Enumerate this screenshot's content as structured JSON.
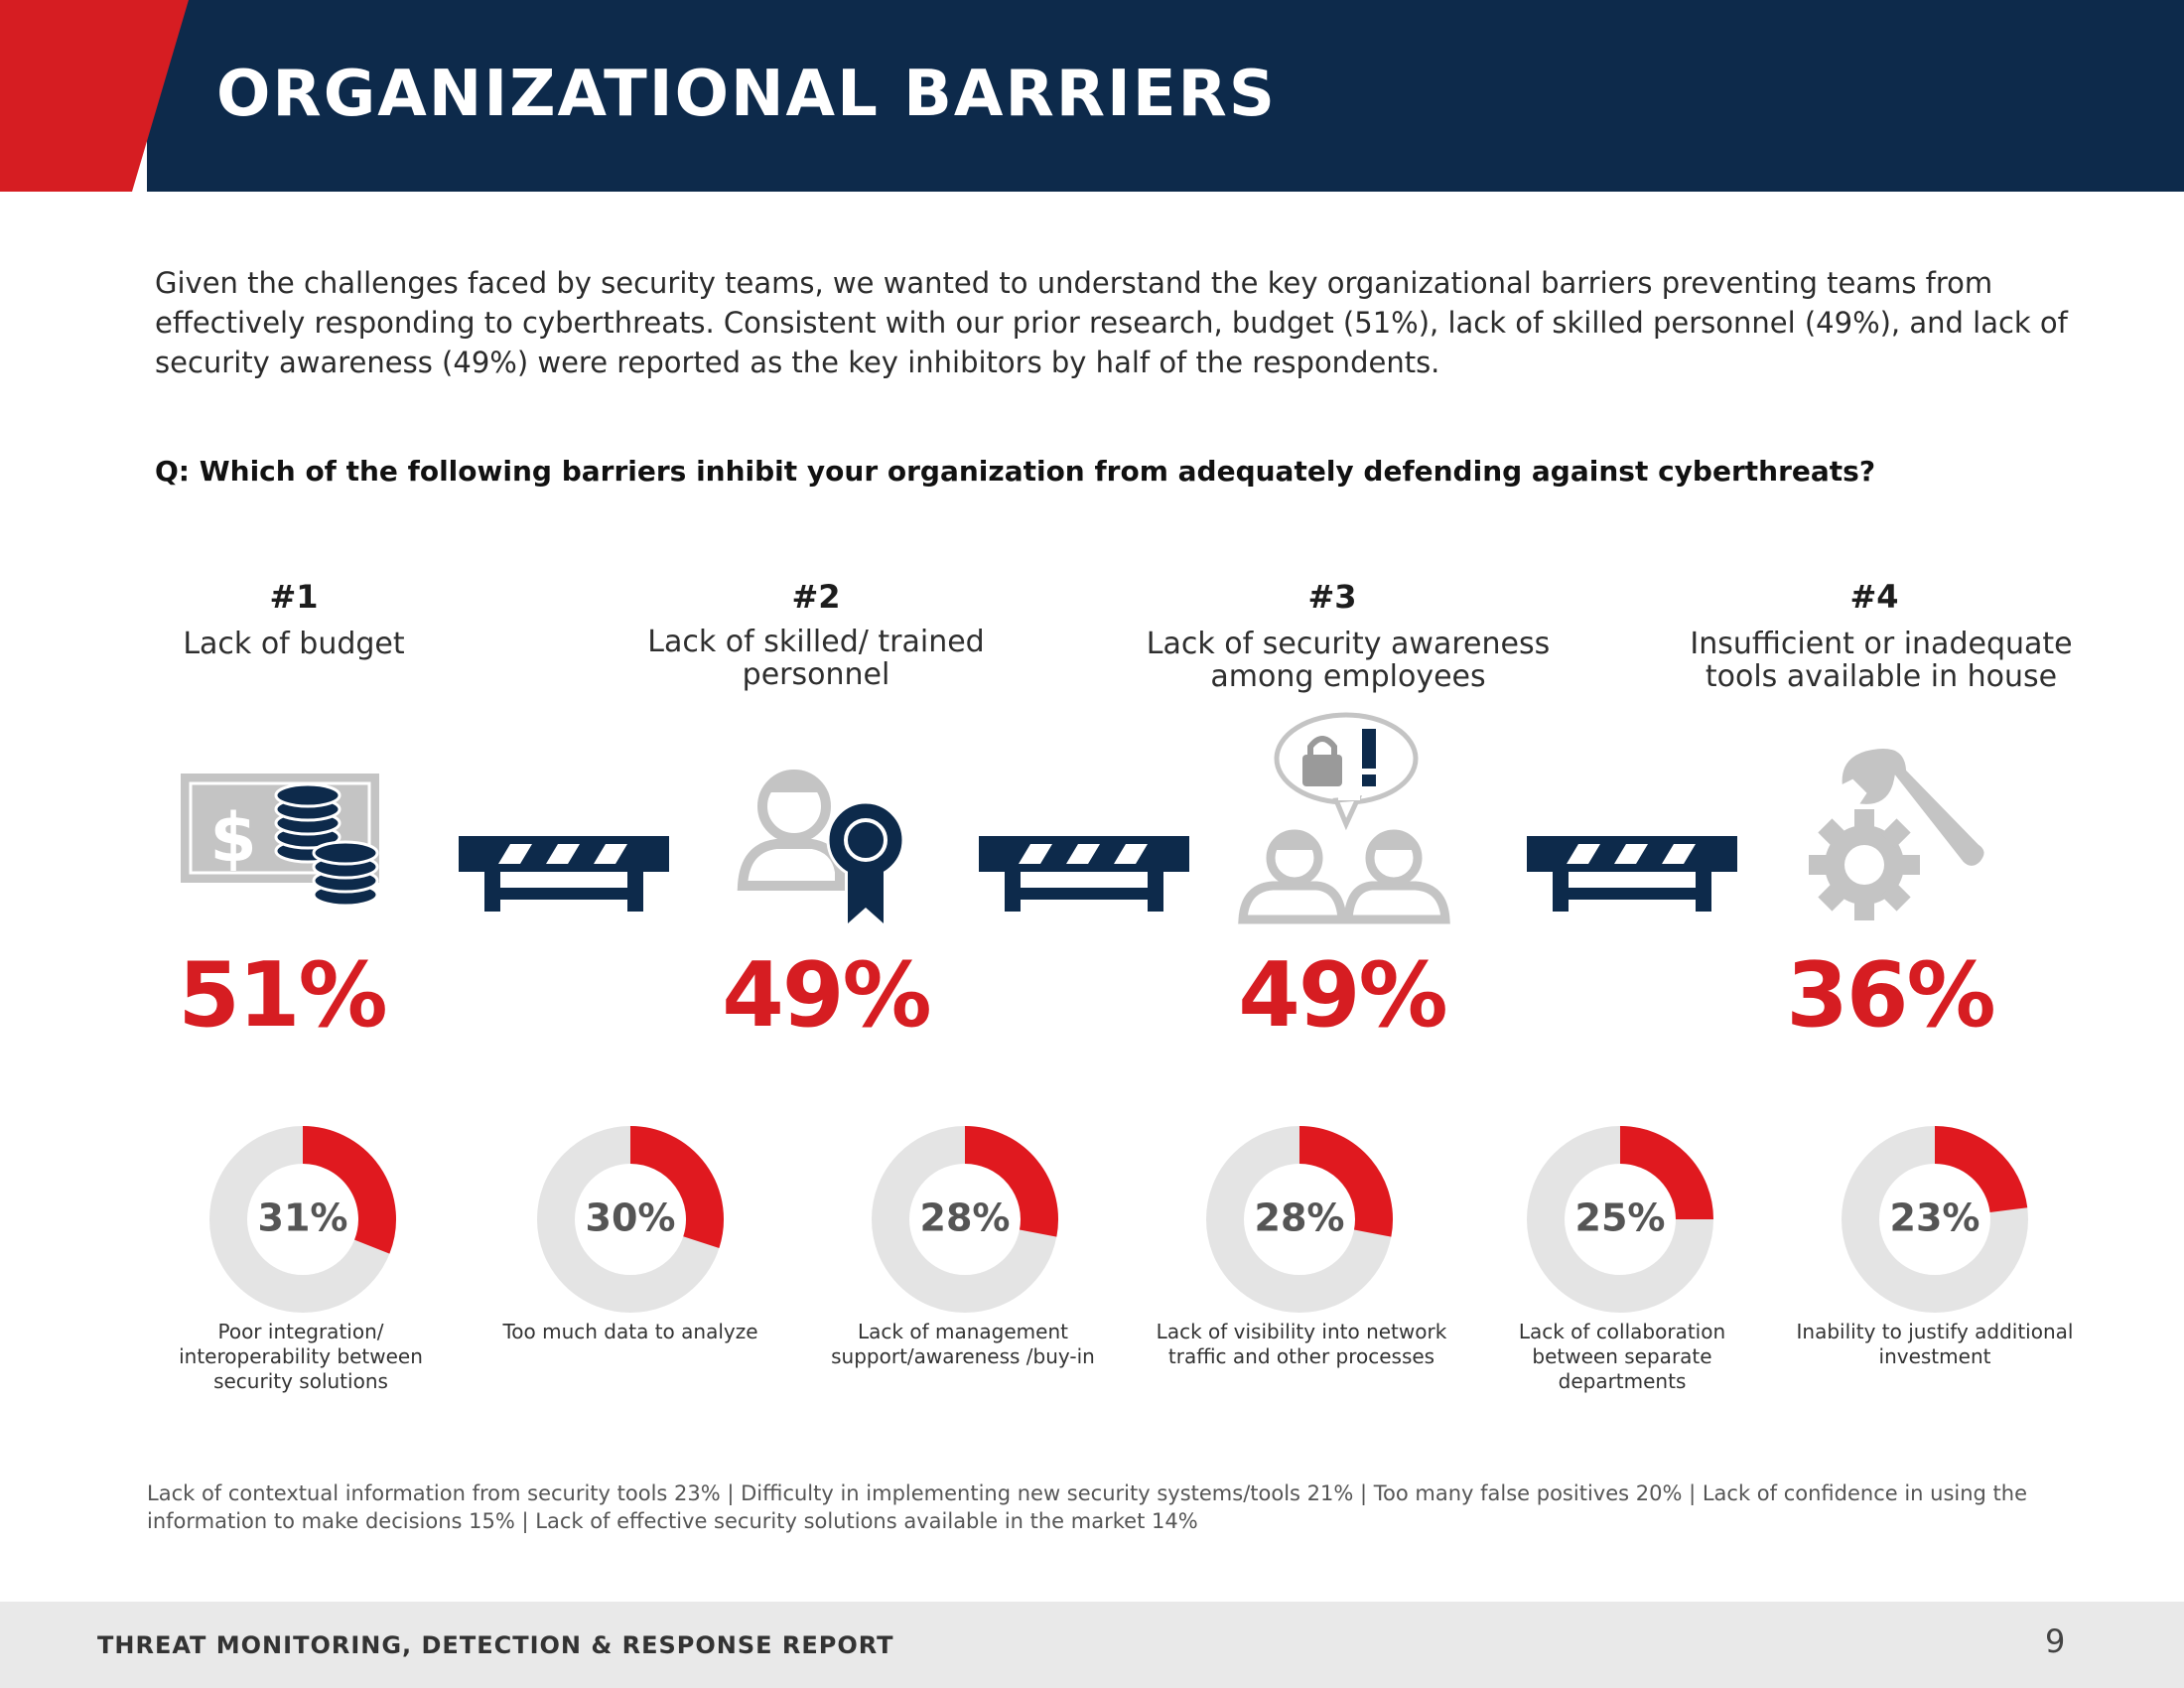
{
  "header": {
    "title": "ORGANIZATIONAL BARRIERS"
  },
  "intro": "Given the challenges faced by security teams, we wanted to understand the key organizational barriers preventing teams from effectively responding to cyberthreats. Consistent with our prior research, budget (51%), lack of skilled personnel (49%), and lack of security awareness (49%) were reported as the key inhibitors by half of the respondents.",
  "question": "Q: Which of the following barriers inhibit your organization from adequately defending against cyberthreats?",
  "top_barriers": [
    {
      "rank": "#1",
      "label": "Lack of budget",
      "percent": "51%",
      "icon": "money-coins-icon"
    },
    {
      "rank": "#2",
      "label": "Lack of skilled/ trained personnel",
      "percent": "49%",
      "icon": "certified-person-icon"
    },
    {
      "rank": "#3",
      "label": "Lack of security awareness among employees",
      "percent": "49%",
      "icon": "people-lock-alert-icon"
    },
    {
      "rank": "#4",
      "label": "Insufficient or inadequate tools available in house",
      "percent": "36%",
      "icon": "wrench-gear-icon"
    }
  ],
  "chart_data": {
    "type": "donut",
    "categories": [
      "Poor integration/ interoperability between security solutions",
      "Too much data to analyze",
      "Lack of management support/awareness /buy-in",
      "Lack of visibility into network traffic and other processes",
      "Lack of collaboration between separate departments",
      "Inability to justify additional investment"
    ],
    "values": [
      31,
      30,
      28,
      28,
      25,
      23
    ],
    "labels": [
      "31%",
      "30%",
      "28%",
      "28%",
      "25%",
      "23%"
    ],
    "colors": {
      "filled": "#e0191f",
      "track": "#e4e4e4"
    }
  },
  "footnote": "Lack of contextual information from security tools 23%  |  Difficulty in implementing new security systems/tools 21%  | Too many false positives 20%  |  Lack of confidence in using the information to make decisions 15%  |  Lack of effective security solutions available in the market 14%",
  "footer": {
    "report_title": "THREAT MONITORING, DETECTION & RESPONSE REPORT",
    "page_number": "9"
  },
  "colors": {
    "navy": "#0d2a4b",
    "red": "#d61d22",
    "grey_icon": "#bdbdbd"
  }
}
